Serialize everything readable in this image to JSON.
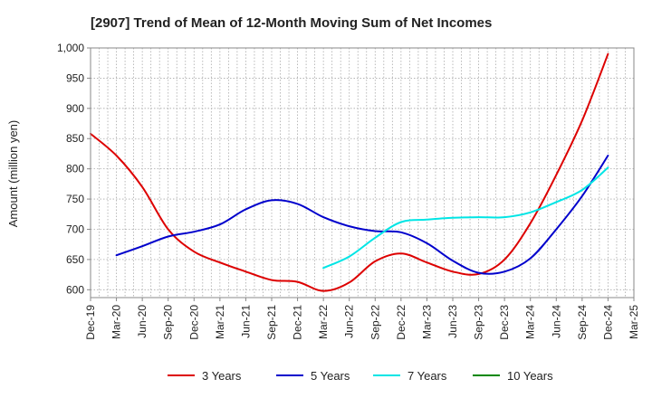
{
  "chart_data": {
    "type": "line",
    "title": "[2907]  Trend of Mean of 12-Month Moving Sum of Net Incomes",
    "xlabel": "",
    "ylabel": "Amount (million yen)",
    "ylim": [
      587,
      1000
    ],
    "yticks": [
      600,
      650,
      700,
      750,
      800,
      850,
      900,
      950,
      1000
    ],
    "ytick_labels": [
      "600",
      "650",
      "700",
      "750",
      "800",
      "850",
      "900",
      "950",
      "1,000"
    ],
    "x_tick_labels": [
      "Dec-19",
      "Mar-20",
      "Jun-20",
      "Sep-20",
      "Dec-20",
      "Mar-21",
      "Jun-21",
      "Sep-21",
      "Dec-21",
      "Mar-22",
      "Jun-22",
      "Sep-22",
      "Dec-22",
      "Mar-23",
      "Jun-23",
      "Sep-23",
      "Dec-23",
      "Mar-24",
      "Jun-24",
      "Sep-24",
      "Dec-24",
      "Mar-25"
    ],
    "grid": true,
    "legend_position": "bottom",
    "series": [
      {
        "name": "3 Years",
        "color": "#dd0000",
        "points": [
          [
            0,
            858
          ],
          [
            1,
            822
          ],
          [
            2,
            770
          ],
          [
            3,
            700
          ],
          [
            4,
            663
          ],
          [
            5,
            645
          ],
          [
            6,
            630
          ],
          [
            7,
            616
          ],
          [
            8,
            613
          ],
          [
            9,
            598
          ],
          [
            10,
            612
          ],
          [
            11,
            647
          ],
          [
            12,
            660
          ],
          [
            13,
            645
          ],
          [
            14,
            630
          ],
          [
            15,
            626
          ],
          [
            16,
            650
          ],
          [
            17,
            710
          ],
          [
            18,
            790
          ],
          [
            19,
            880
          ],
          [
            20,
            990
          ]
        ]
      },
      {
        "name": "5 Years",
        "color": "#0000cc",
        "points": [
          [
            1,
            657
          ],
          [
            2,
            672
          ],
          [
            3,
            688
          ],
          [
            4,
            696
          ],
          [
            5,
            708
          ],
          [
            6,
            733
          ],
          [
            7,
            748
          ],
          [
            8,
            742
          ],
          [
            9,
            720
          ],
          [
            10,
            705
          ],
          [
            11,
            697
          ],
          [
            12,
            695
          ],
          [
            13,
            677
          ],
          [
            14,
            648
          ],
          [
            15,
            628
          ],
          [
            16,
            630
          ],
          [
            17,
            652
          ],
          [
            18,
            700
          ],
          [
            19,
            755
          ],
          [
            20,
            822
          ]
        ]
      },
      {
        "name": "7 Years",
        "color": "#00e5e5",
        "points": [
          [
            9,
            636
          ],
          [
            10,
            655
          ],
          [
            11,
            686
          ],
          [
            12,
            712
          ],
          [
            13,
            716
          ],
          [
            14,
            719
          ],
          [
            15,
            720
          ],
          [
            16,
            720
          ],
          [
            17,
            728
          ],
          [
            18,
            745
          ],
          [
            19,
            765
          ],
          [
            20,
            802
          ]
        ]
      },
      {
        "name": "10 Years",
        "color": "#008800",
        "points": []
      }
    ]
  }
}
